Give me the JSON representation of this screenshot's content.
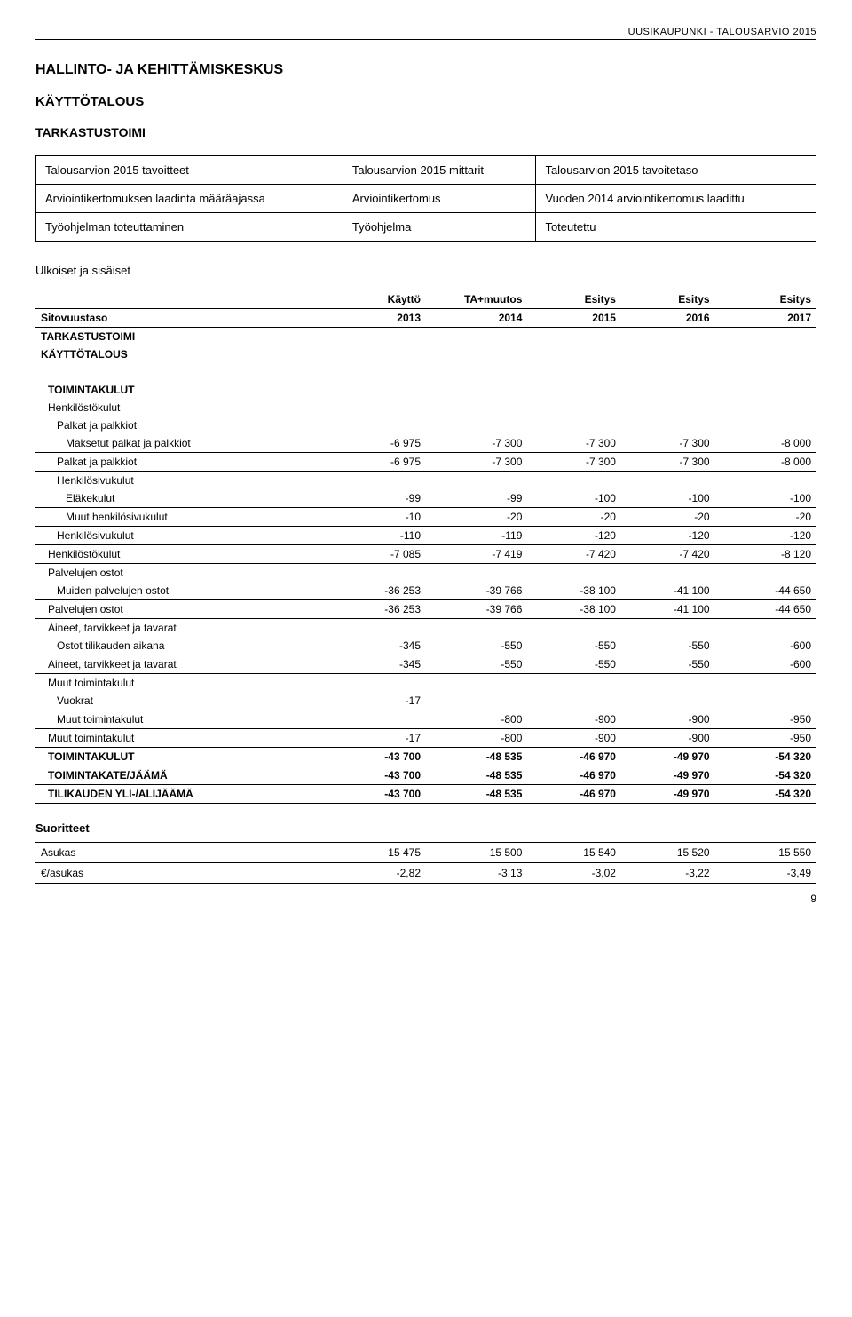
{
  "header": "UUSIKAUPUNKI - TALOUSARVIO 2015",
  "titles": {
    "h1": "HALLINTO- JA KEHITTÄMISKESKUS",
    "h2": "KÄYTTÖTALOUS",
    "h3": "TARKASTUSTOIMI"
  },
  "goals": {
    "cols": [
      "Talousarvion 2015 tavoitteet",
      "Talousarvion 2015 mittarit",
      "Talousarvion 2015 tavoitetaso"
    ],
    "rows": [
      [
        "Arviointikertomuksen laadinta määräajassa",
        "Arviointikertomus",
        "Vuoden 2014 arviointikertomus laadittu"
      ],
      [
        "Työohjelman toteuttaminen",
        "Työohjelma",
        "Toteutettu"
      ]
    ]
  },
  "section_label": "Ulkoiset ja sisäiset",
  "budget": {
    "head_top": [
      "",
      "Käyttö",
      "TA+muutos",
      "Esitys",
      "Esitys",
      "Esitys"
    ],
    "head_bot": [
      "Sitovuustaso",
      "2013",
      "2014",
      "2015",
      "2016",
      "2017"
    ],
    "group1": "TARKASTUSTOIMI",
    "group2": "KÄYTTÖTALOUS",
    "rows": [
      {
        "label": "TOIMINTAKULUT",
        "bold": true,
        "indent": 1,
        "noborder": true,
        "vals": [
          "",
          "",
          "",
          "",
          ""
        ]
      },
      {
        "label": "Henkilöstökulut",
        "indent": 1,
        "noborder": true,
        "vals": [
          "",
          "",
          "",
          "",
          ""
        ]
      },
      {
        "label": "Palkat ja palkkiot",
        "indent": 2,
        "noborder": true,
        "vals": [
          "",
          "",
          "",
          "",
          ""
        ]
      },
      {
        "label": "Maksetut palkat ja palkkiot",
        "indent": 3,
        "vals": [
          "-6 975",
          "-7 300",
          "-7 300",
          "-7 300",
          "-8 000"
        ]
      },
      {
        "label": "Palkat ja palkkiot",
        "indent": 2,
        "vals": [
          "-6 975",
          "-7 300",
          "-7 300",
          "-7 300",
          "-8 000"
        ]
      },
      {
        "label": "Henkilösivukulut",
        "indent": 2,
        "noborder": true,
        "vals": [
          "",
          "",
          "",
          "",
          ""
        ]
      },
      {
        "label": "Eläkekulut",
        "indent": 3,
        "vals": [
          "-99",
          "-99",
          "-100",
          "-100",
          "-100"
        ]
      },
      {
        "label": "Muut henkilösivukulut",
        "indent": 3,
        "vals": [
          "-10",
          "-20",
          "-20",
          "-20",
          "-20"
        ]
      },
      {
        "label": "Henkilösivukulut",
        "indent": 2,
        "vals": [
          "-110",
          "-119",
          "-120",
          "-120",
          "-120"
        ]
      },
      {
        "label": "Henkilöstökulut",
        "indent": 1,
        "vals": [
          "-7 085",
          "-7 419",
          "-7 420",
          "-7 420",
          "-8 120"
        ]
      },
      {
        "label": "Palvelujen ostot",
        "indent": 1,
        "noborder": true,
        "vals": [
          "",
          "",
          "",
          "",
          ""
        ]
      },
      {
        "label": "Muiden palvelujen ostot",
        "indent": 2,
        "vals": [
          "-36 253",
          "-39 766",
          "-38 100",
          "-41 100",
          "-44 650"
        ]
      },
      {
        "label": "Palvelujen ostot",
        "indent": 1,
        "vals": [
          "-36 253",
          "-39 766",
          "-38 100",
          "-41 100",
          "-44 650"
        ]
      },
      {
        "label": "Aineet, tarvikkeet ja tavarat",
        "indent": 1,
        "noborder": true,
        "vals": [
          "",
          "",
          "",
          "",
          ""
        ]
      },
      {
        "label": "Ostot tilikauden aikana",
        "indent": 2,
        "vals": [
          "-345",
          "-550",
          "-550",
          "-550",
          "-600"
        ]
      },
      {
        "label": "Aineet, tarvikkeet ja tavarat",
        "indent": 1,
        "vals": [
          "-345",
          "-550",
          "-550",
          "-550",
          "-600"
        ]
      },
      {
        "label": "Muut toimintakulut",
        "indent": 1,
        "noborder": true,
        "vals": [
          "",
          "",
          "",
          "",
          ""
        ]
      },
      {
        "label": "Vuokrat",
        "indent": 2,
        "vals": [
          "-17",
          "",
          "",
          "",
          ""
        ]
      },
      {
        "label": "Muut toimintakulut",
        "indent": 2,
        "vals": [
          "",
          "-800",
          "-900",
          "-900",
          "-950"
        ]
      },
      {
        "label": "Muut toimintakulut",
        "indent": 1,
        "vals": [
          "-17",
          "-800",
          "-900",
          "-900",
          "-950"
        ]
      },
      {
        "label": "TOIMINTAKULUT",
        "bold": true,
        "indent": 1,
        "vals": [
          "-43 700",
          "-48 535",
          "-46 970",
          "-49 970",
          "-54 320"
        ]
      },
      {
        "label": "TOIMINTAKATE/JÄÄMÄ",
        "bold": true,
        "indent": 1,
        "vals": [
          "-43 700",
          "-48 535",
          "-46 970",
          "-49 970",
          "-54 320"
        ]
      },
      {
        "label": "TILIKAUDEN YLI-/ALIJÄÄMÄ",
        "bold": true,
        "indent": 1,
        "vals": [
          "-43 700",
          "-48 535",
          "-46 970",
          "-49 970",
          "-54 320"
        ]
      }
    ]
  },
  "suoritteet": {
    "label": "Suoritteet",
    "rows": [
      {
        "label": "Asukas",
        "vals": [
          "15 475",
          "15 500",
          "15 540",
          "15 520",
          "15 550"
        ]
      },
      {
        "label": "€/asukas",
        "vals": [
          "-2,82",
          "-3,13",
          "-3,02",
          "-3,22",
          "-3,49"
        ]
      }
    ]
  },
  "page": "9"
}
